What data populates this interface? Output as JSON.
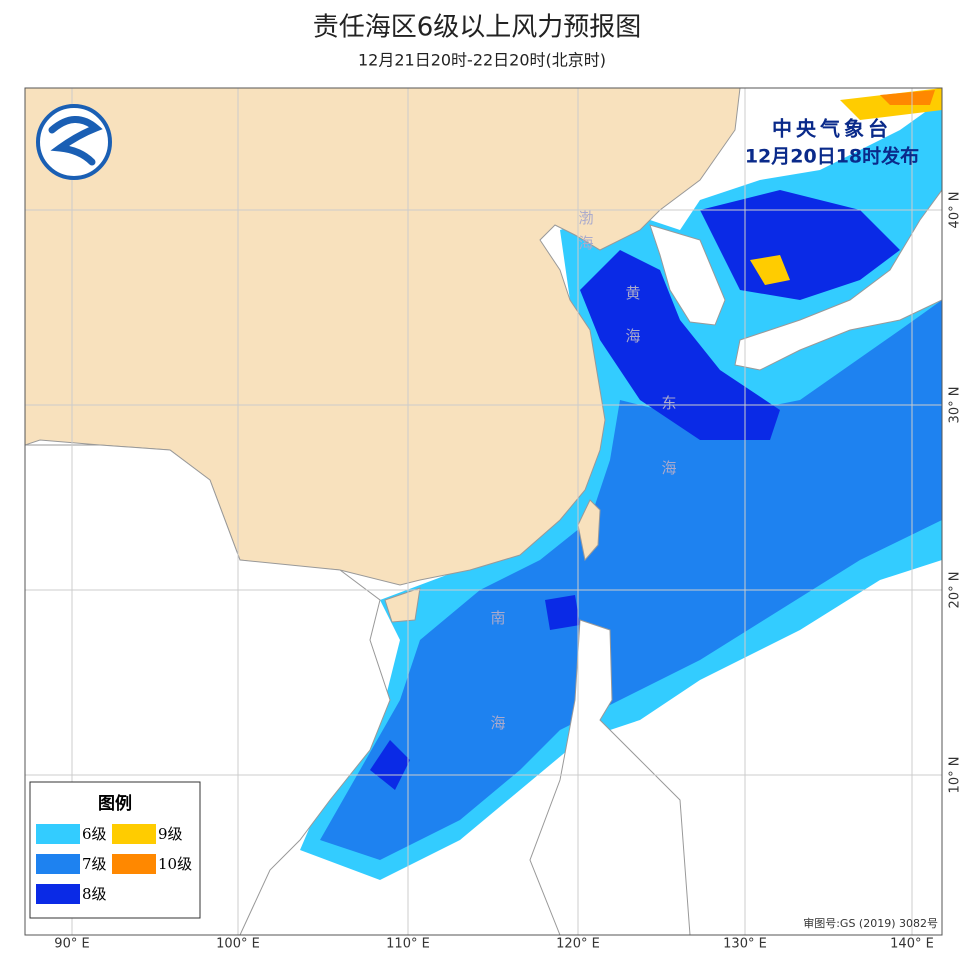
{
  "header": {
    "title": "责任海区6级以上风力预报图",
    "subtitle": "12月21日20时-22日20时(北京时)"
  },
  "issuer": {
    "name": "中央气象台",
    "time": "12月20日18时发布"
  },
  "legend": {
    "title": "图例",
    "items": [
      {
        "label": "6级",
        "color": "#33ccff"
      },
      {
        "label": "9级",
        "color": "#ffcc00"
      },
      {
        "label": "7级",
        "color": "#1e82f0"
      },
      {
        "label": "10级",
        "color": "#ff8800"
      },
      {
        "label": "8级",
        "color": "#0a2ae6"
      }
    ]
  },
  "sea_labels": [
    "渤海",
    "黄海",
    "东海",
    "南海"
  ],
  "lon_ticks": [
    "90° E",
    "100° E",
    "110° E",
    "120° E",
    "130° E",
    "140° E"
  ],
  "lat_ticks": [
    "40° N",
    "30° N",
    "20° N",
    "10° N"
  ],
  "approval": "审图号:GS (2019) 3082号"
}
